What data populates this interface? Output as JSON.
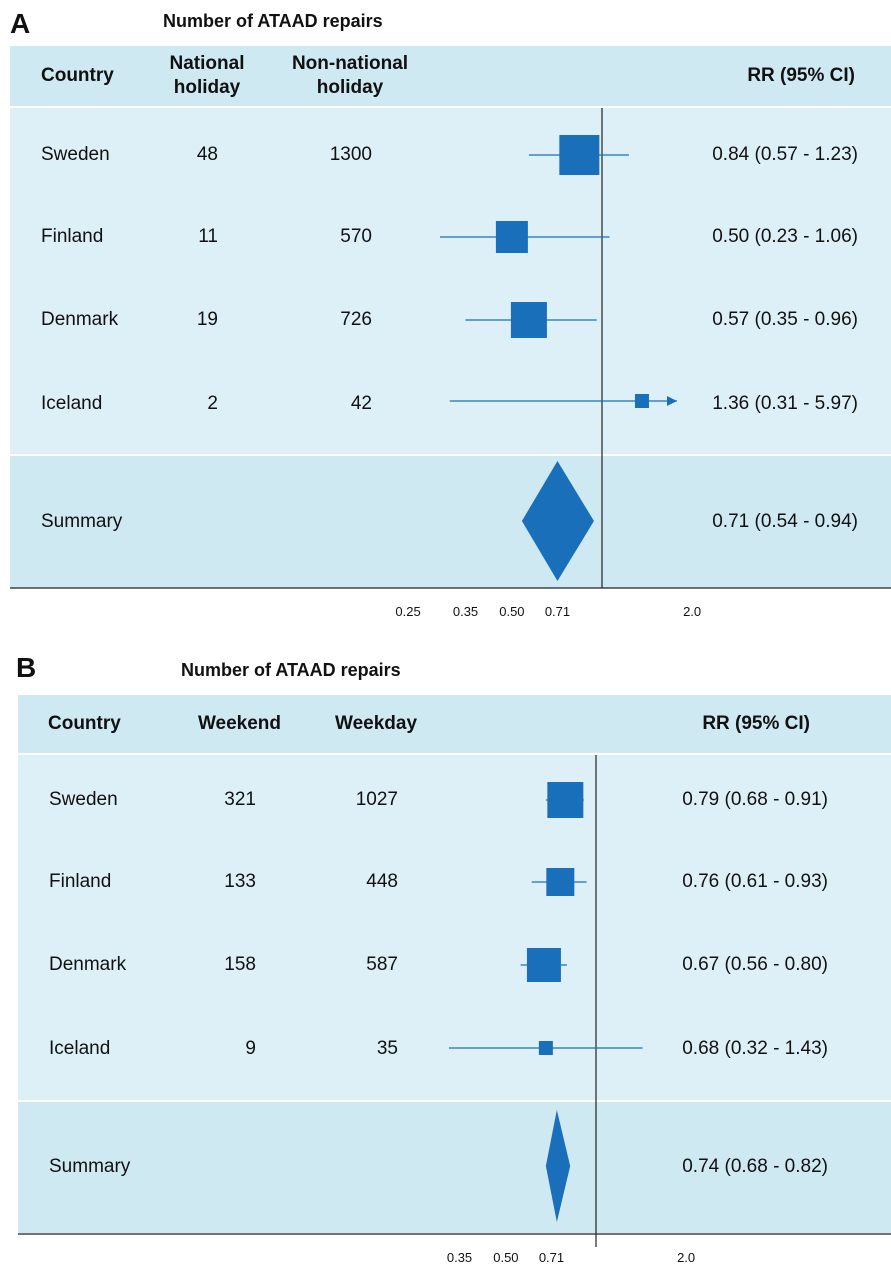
{
  "panels": [
    {
      "letter": "A",
      "title": "Number of ATAAD repairs",
      "headers": {
        "country": "Country",
        "col1": "National\nholiday",
        "col2": "Non-national\nholiday",
        "rr": "RR (95% CI)"
      },
      "rows": [
        {
          "country": "Sweden",
          "col1": "48",
          "col2": "1300",
          "rr_text": "0.84 (0.57 - 1.23)"
        },
        {
          "country": "Finland",
          "col1": "11",
          "col2": "570",
          "rr_text": "0.50 (0.23 - 1.06)"
        },
        {
          "country": "Denmark",
          "col1": "19",
          "col2": "726",
          "rr_text": "0.57 (0.35 - 0.96)"
        },
        {
          "country": "Iceland",
          "col1": "2",
          "col2": "42",
          "rr_text": "1.36 (0.31 - 5.97)"
        }
      ],
      "summary": {
        "label": "Summary",
        "rr_text": "0.71 (0.54 - 0.94)"
      },
      "ticks": [
        "0.25",
        "0.35",
        "0.50",
        "0.71",
        "2.0"
      ]
    },
    {
      "letter": "B",
      "title": "Number of ATAAD repairs",
      "headers": {
        "country": "Country",
        "col1": "Weekend",
        "col2": "Weekday",
        "rr": "RR (95% CI)"
      },
      "rows": [
        {
          "country": "Sweden",
          "col1": "321",
          "col2": "1027",
          "rr_text": "0.79 (0.68 - 0.91)"
        },
        {
          "country": "Finland",
          "col1": "133",
          "col2": "448",
          "rr_text": "0.76 (0.61 - 0.93)"
        },
        {
          "country": "Denmark",
          "col1": "158",
          "col2": "587",
          "rr_text": "0.67 (0.56 - 0.80)"
        },
        {
          "country": "Iceland",
          "col1": "9",
          "col2": "35",
          "rr_text": "0.68 (0.32 - 1.43)"
        }
      ],
      "summary": {
        "label": "Summary",
        "rr_text": "0.74 (0.68 - 0.82)"
      },
      "ticks": [
        "0.35",
        "0.50",
        "0.71",
        "2.0"
      ]
    }
  ],
  "chart_data": [
    {
      "type": "forest",
      "title": "Number of ATAAD repairs",
      "scale": "log",
      "reference_line": 1.0,
      "series": [
        {
          "name": "Sweden",
          "rr": 0.84,
          "lo": 0.57,
          "hi": 1.23,
          "events": 48
        },
        {
          "name": "Finland",
          "rr": 0.5,
          "lo": 0.23,
          "hi": 1.06,
          "events": 11
        },
        {
          "name": "Denmark",
          "rr": 0.57,
          "lo": 0.35,
          "hi": 0.96,
          "events": 19
        },
        {
          "name": "Iceland",
          "rr": 1.36,
          "lo": 0.31,
          "hi": 5.97,
          "events": 2
        }
      ],
      "summary": {
        "rr": 0.71,
        "lo": 0.54,
        "hi": 0.94
      },
      "xticks": [
        0.25,
        0.35,
        0.5,
        0.71,
        2.0
      ],
      "color": "#1a6fba"
    },
    {
      "type": "forest",
      "title": "Number of ATAAD repairs",
      "scale": "log",
      "reference_line": 1.0,
      "series": [
        {
          "name": "Sweden",
          "rr": 0.79,
          "lo": 0.68,
          "hi": 0.91,
          "events": 321
        },
        {
          "name": "Finland",
          "rr": 0.76,
          "lo": 0.61,
          "hi": 0.93,
          "events": 133
        },
        {
          "name": "Denmark",
          "rr": 0.67,
          "lo": 0.56,
          "hi": 0.8,
          "events": 158
        },
        {
          "name": "Iceland",
          "rr": 0.68,
          "lo": 0.32,
          "hi": 1.43,
          "events": 9
        }
      ],
      "summary": {
        "rr": 0.74,
        "lo": 0.68,
        "hi": 0.82
      },
      "xticks": [
        0.35,
        0.5,
        0.71,
        2.0
      ],
      "color": "#1a6fba"
    }
  ]
}
